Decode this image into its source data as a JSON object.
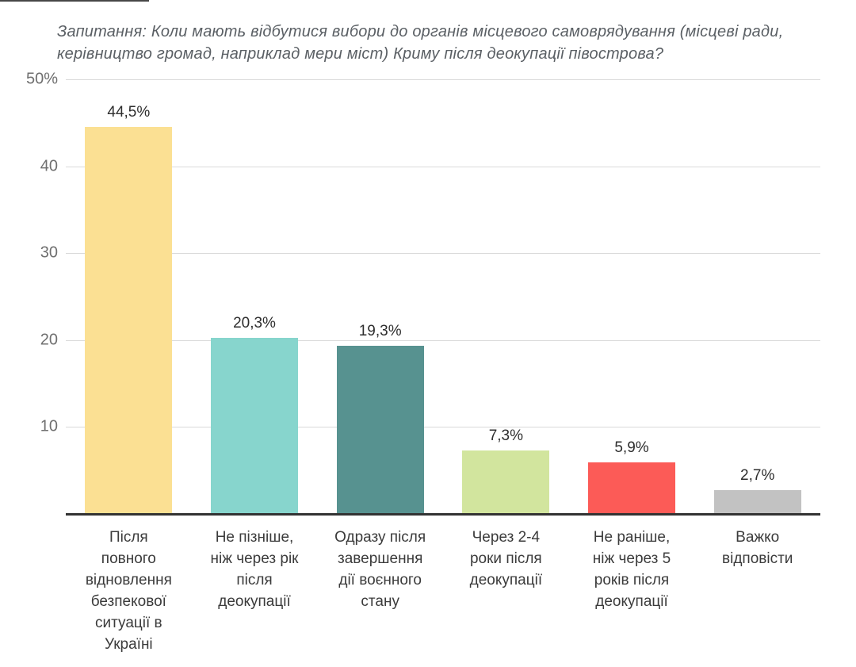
{
  "chart_data": {
    "type": "bar",
    "title": "Запитання: Коли мають відбутися вибори до органів місцевого самоврядування (місцеві ради,\nкерівництво громад, наприклад мери міст) Криму після деокупації півострова?",
    "categories": [
      "Після\nповного\nвідновлення\nбезпекової\nситуації в\nУкраїні",
      "Не пізніше,\nніж через рік\nпісля\nдеокупації",
      "Одразу після\nзавершення\nдії воєнного\nстану",
      "Через 2-4\nроки після\nдеокупації",
      "Не раніше,\nніж через 5\nроків після\nдеокупації",
      "Важко\nвідповісти"
    ],
    "values": [
      44.5,
      20.3,
      19.3,
      7.3,
      5.9,
      2.7
    ],
    "value_labels": [
      "44,5%",
      "20,3%",
      "19,3%",
      "7,3%",
      "5,9%",
      "2,7%"
    ],
    "bar_colors": [
      "#FBE093",
      "#87D5CD",
      "#579290",
      "#D2E59E",
      "#FC5B57",
      "#C2C2C2"
    ],
    "y_ticks": [
      {
        "value": 50,
        "label": "50%"
      },
      {
        "value": 40,
        "label": "40"
      },
      {
        "value": 30,
        "label": "30"
      },
      {
        "value": 20,
        "label": "20"
      },
      {
        "value": 10,
        "label": "10"
      }
    ],
    "ylim": [
      0,
      50
    ],
    "xlabel": "",
    "ylabel": "",
    "grid": "horizontal",
    "legend": "none"
  },
  "colors": {
    "background": "#ffffff",
    "title_text": "#5b6065",
    "axis_text": "#6f6f6f",
    "value_text": "#2e2e2e",
    "category_text": "#3b3b3b",
    "gridline": "#dadada",
    "baseline": "#333333"
  }
}
